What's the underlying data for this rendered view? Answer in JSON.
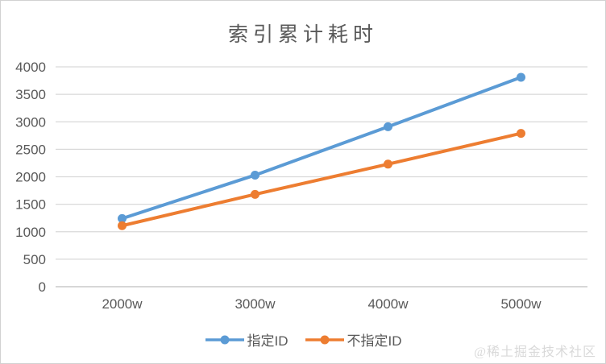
{
  "chart_data": {
    "type": "line",
    "title": "索引累计耗时",
    "categories": [
      "2000w",
      "3000w",
      "4000w",
      "5000w"
    ],
    "series": [
      {
        "name": "指定ID",
        "color": "#5B9BD5",
        "values": [
          1240,
          2030,
          2910,
          3810
        ]
      },
      {
        "name": "不指定ID",
        "color": "#ED7D31",
        "values": [
          1110,
          1680,
          2230,
          2790
        ]
      }
    ],
    "xlabel": "",
    "ylabel": "",
    "ylim": [
      0,
      4000
    ],
    "yticks": [
      0,
      500,
      1000,
      1500,
      2000,
      2500,
      3000,
      3500,
      4000
    ],
    "grid": true,
    "legend_position": "bottom",
    "marker": "circle"
  },
  "watermark": {
    "text": "@稀土掘金技术社区"
  },
  "colors": {
    "background": "#FFFFFF",
    "border": "#D2D2D2",
    "title_text": "#595959",
    "axis_text": "#595959",
    "gridline": "#D9D9D9",
    "axis_line": "#BFBFBF",
    "watermark": "#D9D9D9"
  }
}
